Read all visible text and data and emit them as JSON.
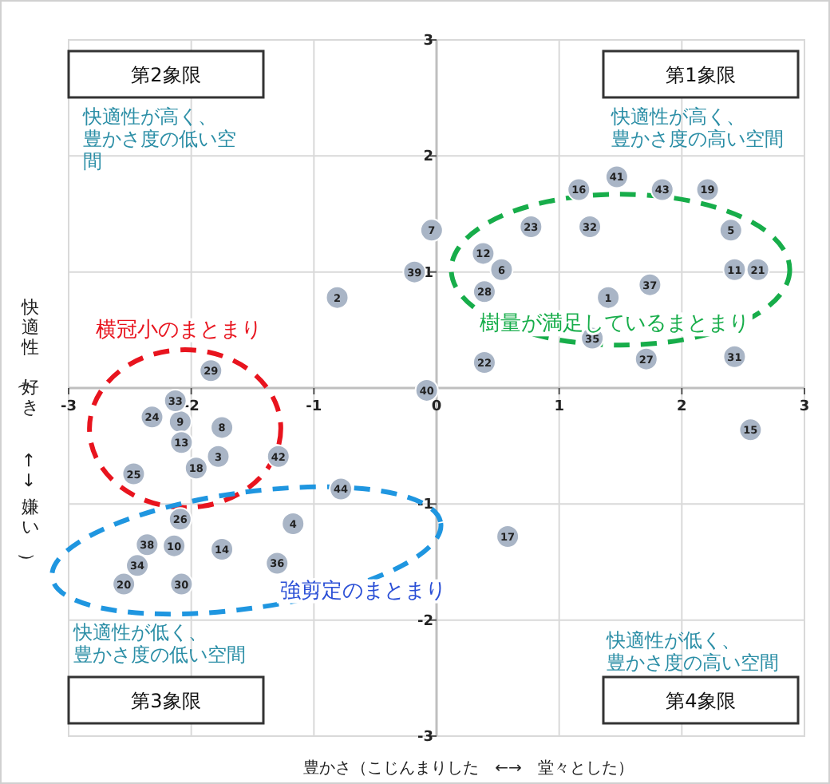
{
  "chart_data": {
    "type": "scatter",
    "xlabel": "豊かさ（こじんまりした　←→　堂々とした）",
    "ylabel": "快適性（好き　←→　嫌い）",
    "xlim": [
      -3,
      3
    ],
    "ylim": [
      -3,
      3
    ],
    "xticks": [
      -3,
      -2,
      -1,
      0,
      1,
      2,
      3
    ],
    "yticks": [
      -3,
      -2,
      -1,
      1,
      2,
      3
    ],
    "grid": true,
    "marker": "circle",
    "series": [
      {
        "color": "#a9b5c6",
        "x": [
          1.4,
          -0.81,
          -1.78,
          -1.17,
          2.4,
          0.53,
          -0.04,
          -1.75,
          -2.09,
          -2.14,
          2.43,
          0.38,
          -2.08,
          -1.75,
          2.56,
          1.16,
          0.58,
          -1.96,
          2.21,
          -2.55,
          2.62,
          0.39,
          0.77,
          -2.32,
          -2.47,
          -2.09,
          1.71,
          0.39,
          -1.84,
          -2.08,
          2.43,
          1.25,
          -2.13,
          -2.44,
          1.27,
          -1.3,
          1.74,
          -2.36,
          -0.18,
          -0.08,
          1.47,
          -1.29,
          1.84,
          -0.78
        ],
        "values": [
          0.78,
          0.78,
          -0.59,
          -1.17,
          1.36,
          1.02,
          1.36,
          -0.34,
          -0.29,
          -1.36,
          1.02,
          1.16,
          -0.47,
          -1.39,
          -0.36,
          1.71,
          -1.28,
          -0.69,
          1.71,
          -1.69,
          1.02,
          0.22,
          1.39,
          -0.25,
          -0.74,
          -1.13,
          0.25,
          0.83,
          0.15,
          -1.69,
          0.27,
          1.39,
          -0.11,
          -1.53,
          0.43,
          -1.51,
          0.89,
          -1.35,
          1.0,
          -0.02,
          1.82,
          -0.59,
          1.71,
          -0.87
        ]
      }
    ],
    "annotations": [
      "第1象限",
      "第2象限",
      "第3象限",
      "第4象限",
      "快適性が高く、豊かさ度の高い空間",
      "快適性が高く、豊かさ度の低い空間",
      "快適性が低く、豊かさ度の低い空間",
      "快適性が低く、豊かさ度の高い空間",
      "横冠小のまとまり",
      "樹量が満足しているまとまり",
      "強剪定のまとまり",
      {
        "text": "1",
        "x": 1.4,
        "y": 0.78
      },
      {
        "text": "2",
        "x": -0.81,
        "y": 0.78
      },
      {
        "text": "3",
        "x": -1.78,
        "y": -0.59
      },
      {
        "text": "4",
        "x": -1.17,
        "y": -1.17
      },
      {
        "text": "5",
        "x": 2.4,
        "y": 1.36
      },
      {
        "text": "6",
        "x": 0.53,
        "y": 1.02
      },
      {
        "text": "7",
        "x": -0.04,
        "y": 1.36
      },
      {
        "text": "8",
        "x": -1.75,
        "y": -0.34
      },
      {
        "text": "9",
        "x": -2.09,
        "y": -0.29
      },
      {
        "text": "10",
        "x": -2.14,
        "y": -1.36
      },
      {
        "text": "11",
        "x": 2.43,
        "y": 1.02
      },
      {
        "text": "12",
        "x": 0.38,
        "y": 1.16
      },
      {
        "text": "13",
        "x": -2.08,
        "y": -0.47
      },
      {
        "text": "14",
        "x": -1.75,
        "y": -1.39
      },
      {
        "text": "15",
        "x": 2.56,
        "y": -0.36
      },
      {
        "text": "16",
        "x": 1.16,
        "y": 1.71
      },
      {
        "text": "17",
        "x": 0.58,
        "y": -1.28
      },
      {
        "text": "18",
        "x": -1.96,
        "y": -0.69
      },
      {
        "text": "19",
        "x": 2.21,
        "y": 1.71
      },
      {
        "text": "20",
        "x": -2.55,
        "y": -1.69
      },
      {
        "text": "21",
        "x": 2.62,
        "y": 1.02
      },
      {
        "text": "22",
        "x": 0.39,
        "y": 0.22
      },
      {
        "text": "23",
        "x": 0.77,
        "y": 1.39
      },
      {
        "text": "24",
        "x": -2.32,
        "y": -0.25
      },
      {
        "text": "25",
        "x": -2.47,
        "y": -0.74
      },
      {
        "text": "26",
        "x": -2.09,
        "y": -1.13
      },
      {
        "text": "27",
        "x": 1.71,
        "y": 0.25
      },
      {
        "text": "28",
        "x": 0.39,
        "y": 0.83
      },
      {
        "text": "29",
        "x": -1.84,
        "y": 0.15
      },
      {
        "text": "30",
        "x": -2.08,
        "y": -1.69
      },
      {
        "text": "31",
        "x": 2.43,
        "y": 0.27
      },
      {
        "text": "32",
        "x": 1.25,
        "y": 1.39
      },
      {
        "text": "33",
        "x": -2.13,
        "y": -0.11
      },
      {
        "text": "34",
        "x": -2.44,
        "y": -1.53
      },
      {
        "text": "35",
        "x": 1.27,
        "y": 0.43
      },
      {
        "text": "36",
        "x": -1.3,
        "y": -1.51
      },
      {
        "text": "37",
        "x": 1.74,
        "y": 0.89
      },
      {
        "text": "38",
        "x": -2.36,
        "y": -1.35
      },
      {
        "text": "39",
        "x": -0.18,
        "y": 1.0
      },
      {
        "text": "40",
        "x": -0.08,
        "y": -0.02
      },
      {
        "text": "41",
        "x": 1.47,
        "y": 1.82
      },
      {
        "text": "42",
        "x": -1.29,
        "y": -0.59
      },
      {
        "text": "43",
        "x": 1.84,
        "y": 1.71
      },
      {
        "text": "44",
        "x": -0.78,
        "y": -0.87
      }
    ]
  }
}
